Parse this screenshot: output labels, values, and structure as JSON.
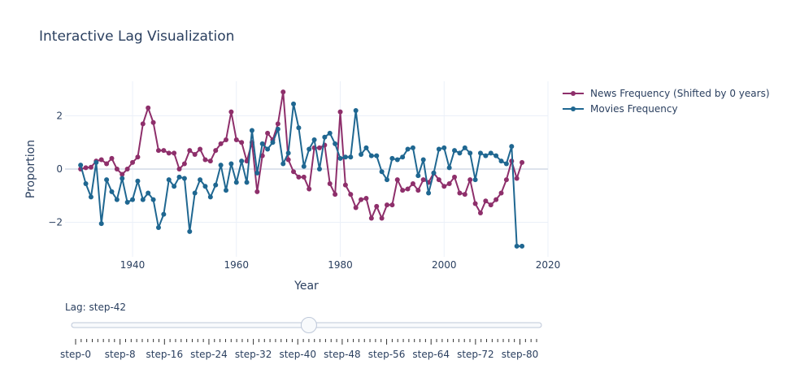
{
  "chart_data": {
    "type": "line",
    "title": "Interactive Lag Visualization",
    "xlabel": "Year",
    "ylabel": "Proportion",
    "xlim": [
      1927,
      2020
    ],
    "ylim": [
      -3.3,
      3.3
    ],
    "x_ticks": [
      1940,
      1960,
      1980,
      2000,
      2020
    ],
    "y_ticks": [
      -2,
      0,
      2
    ],
    "y_tick_labels": [
      "−2",
      "0",
      "2"
    ],
    "grid": true,
    "legend_position": "top-right",
    "series": [
      {
        "name": "News Frequency (Shifted by 0 years)",
        "color": "#8e2f6b",
        "x": [
          1930,
          1931,
          1932,
          1933,
          1934,
          1935,
          1936,
          1937,
          1938,
          1939,
          1940,
          1941,
          1942,
          1943,
          1944,
          1945,
          1946,
          1947,
          1948,
          1949,
          1950,
          1951,
          1952,
          1953,
          1954,
          1955,
          1956,
          1957,
          1958,
          1959,
          1960,
          1961,
          1962,
          1963,
          1964,
          1965,
          1966,
          1967,
          1968,
          1969,
          1970,
          1971,
          1972,
          1973,
          1974,
          1975,
          1976,
          1977,
          1978,
          1979,
          1980,
          1981,
          1982,
          1983,
          1984,
          1985,
          1986,
          1987,
          1988,
          1989,
          1990,
          1991,
          1992,
          1993,
          1994,
          1995,
          1996,
          1997,
          1998,
          1999,
          2000,
          2001,
          2002,
          2003,
          2004,
          2005,
          2006,
          2007,
          2008,
          2009,
          2010,
          2011,
          2012,
          2013,
          2014,
          2015
        ],
        "y": [
          0.0,
          0.05,
          0.07,
          0.3,
          0.35,
          0.2,
          0.4,
          0.0,
          -0.2,
          0.0,
          0.25,
          0.45,
          1.7,
          2.3,
          1.75,
          0.7,
          0.7,
          0.6,
          0.6,
          0.0,
          0.2,
          0.7,
          0.55,
          0.75,
          0.35,
          0.3,
          0.7,
          0.95,
          1.1,
          2.15,
          1.1,
          1.0,
          0.3,
          1.0,
          -0.85,
          0.5,
          1.35,
          1.1,
          1.7,
          2.9,
          0.35,
          -0.1,
          -0.3,
          -0.3,
          -0.75,
          0.8,
          0.8,
          0.9,
          -0.55,
          -0.95,
          2.15,
          -0.6,
          -0.95,
          -1.45,
          -1.15,
          -1.1,
          -1.85,
          -1.4,
          -1.85,
          -1.35,
          -1.35,
          -0.4,
          -0.8,
          -0.75,
          -0.55,
          -0.8,
          -0.4,
          -0.5,
          -0.15,
          -0.4,
          -0.65,
          -0.55,
          -0.3,
          -0.9,
          -0.95,
          -0.4,
          -1.3,
          -1.65,
          -1.2,
          -1.35,
          -1.15,
          -0.9,
          -0.4,
          0.3,
          -0.35,
          0.25
        ]
      },
      {
        "name": "Movies Frequency",
        "color": "#1f6791",
        "x": [
          1930,
          1931,
          1932,
          1933,
          1934,
          1935,
          1936,
          1937,
          1938,
          1939,
          1940,
          1941,
          1942,
          1943,
          1944,
          1945,
          1946,
          1947,
          1948,
          1949,
          1950,
          1951,
          1952,
          1953,
          1954,
          1955,
          1956,
          1957,
          1958,
          1959,
          1960,
          1961,
          1962,
          1963,
          1964,
          1965,
          1966,
          1967,
          1968,
          1969,
          1970,
          1971,
          1972,
          1973,
          1974,
          1975,
          1976,
          1977,
          1978,
          1979,
          1980,
          1981,
          1982,
          1983,
          1984,
          1985,
          1986,
          1987,
          1988,
          1989,
          1990,
          1991,
          1992,
          1993,
          1994,
          1995,
          1996,
          1997,
          1998,
          1999,
          2000,
          2001,
          2002,
          2003,
          2004,
          2005,
          2006,
          2007,
          2008,
          2009,
          2010,
          2011,
          2012,
          2013,
          2014,
          2015
        ],
        "y": [
          0.15,
          -0.55,
          -1.05,
          0.25,
          -2.05,
          -0.4,
          -0.85,
          -1.15,
          -0.35,
          -1.25,
          -1.15,
          -0.45,
          -1.15,
          -0.9,
          -1.15,
          -2.2,
          -1.7,
          -0.4,
          -0.65,
          -0.3,
          -0.35,
          -2.35,
          -0.9,
          -0.4,
          -0.65,
          -1.05,
          -0.6,
          0.15,
          -0.8,
          0.2,
          -0.5,
          0.3,
          -0.5,
          1.45,
          -0.15,
          0.95,
          0.75,
          1.0,
          1.5,
          0.2,
          0.6,
          2.45,
          1.55,
          0.1,
          0.75,
          1.1,
          0.0,
          1.2,
          1.35,
          0.95,
          0.4,
          0.45,
          0.45,
          2.2,
          0.55,
          0.8,
          0.5,
          0.5,
          -0.1,
          -0.4,
          0.4,
          0.35,
          0.45,
          0.75,
          0.8,
          -0.25,
          0.35,
          -0.9,
          -0.15,
          0.75,
          0.8,
          0.05,
          0.7,
          0.6,
          0.8,
          0.6,
          -0.4,
          0.6,
          0.5,
          0.6,
          0.5,
          0.3,
          0.2,
          0.85,
          -2.9,
          -2.9
        ]
      }
    ]
  },
  "slider": {
    "current_label": "Lag: step-42",
    "current_index": 42,
    "step_count": 84,
    "tick_labels": [
      "step-0",
      "step-8",
      "step-16",
      "step-24",
      "step-32",
      "step-40",
      "step-48",
      "step-56",
      "step-64",
      "step-72",
      "step-80"
    ],
    "tick_label_indices": [
      0,
      8,
      16,
      24,
      32,
      40,
      48,
      56,
      64,
      72,
      80
    ]
  }
}
